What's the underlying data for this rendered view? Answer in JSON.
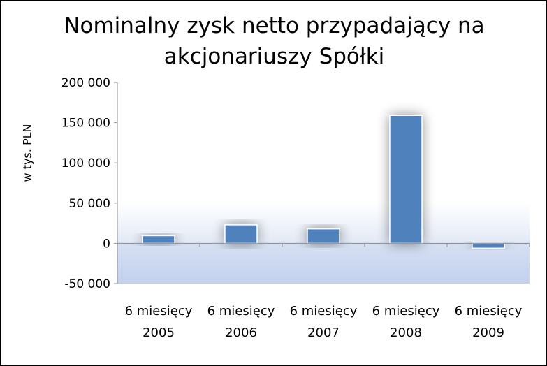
{
  "chart_data": {
    "type": "bar",
    "title_line1": "Nominalny zysk netto przypadający na",
    "title_line2": "akcjonariuszy Spółki",
    "ylabel": "w tys. PLN",
    "xlabel": "",
    "categories": [
      [
        "6 miesięcy",
        "2005"
      ],
      [
        "6 miesięcy",
        "2006"
      ],
      [
        "6 miesięcy",
        "2007"
      ],
      [
        "6 miesięcy",
        "2008"
      ],
      [
        "6 miesięcy",
        "2009"
      ]
    ],
    "values": [
      9500,
      23000,
      18000,
      159000,
      -6000
    ],
    "ylim": [
      -50000,
      200000
    ],
    "yticks": [
      -50000,
      0,
      50000,
      100000,
      150000,
      200000
    ],
    "ytick_labels": [
      "-50 000",
      "0",
      "50 000",
      "100 000",
      "150 000",
      "200 000"
    ],
    "bar_color": "#4f81bd",
    "grid": false,
    "legend": "none"
  }
}
